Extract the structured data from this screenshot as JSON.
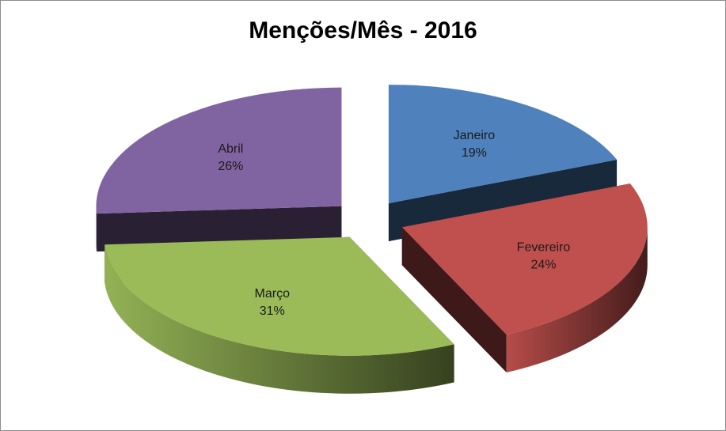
{
  "chart_data": {
    "type": "pie",
    "style": "3d-exploded",
    "title": "Menções/Mês - 2016",
    "slices": [
      {
        "label": "Janeiro",
        "value": 19,
        "pct_label": "19%",
        "color": "#4f81bd"
      },
      {
        "label": "Fevereiro",
        "value": 24,
        "pct_label": "24%",
        "color": "#c0504d"
      },
      {
        "label": "Março",
        "value": 31,
        "pct_label": "31%",
        "color": "#9bbb59"
      },
      {
        "label": "Abril",
        "value": 26,
        "pct_label": "26%",
        "color": "#8064a2"
      }
    ]
  }
}
